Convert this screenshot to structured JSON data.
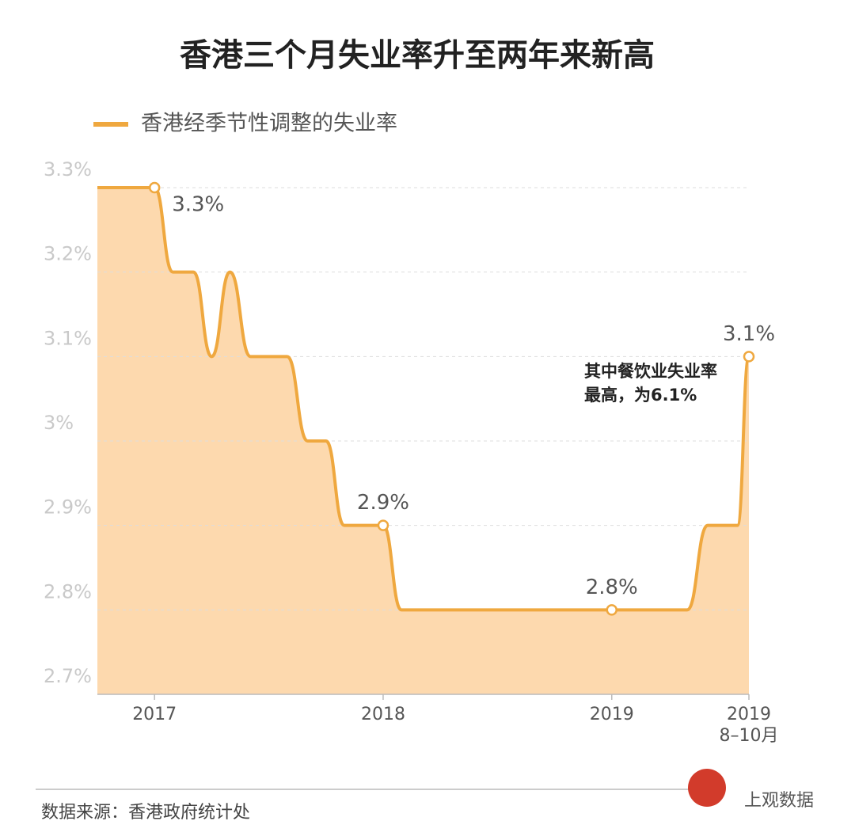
{
  "chart_data": {
    "type": "area",
    "title": "香港三个月失业率升至两年来新高",
    "series": [
      {
        "name": "香港经季节性调整的失业率",
        "color": "#efa83f",
        "fill": "#fdd9ae",
        "values": [
          3.3,
          3.3,
          3.3,
          3.3,
          3.2,
          3.2,
          3.1,
          3.2,
          3.1,
          3.1,
          3.1,
          3.0,
          3.0,
          2.9,
          2.9,
          2.9,
          2.8,
          2.8,
          2.8,
          2.8,
          2.8,
          2.8,
          2.8,
          2.8,
          2.8,
          2.8,
          2.8,
          2.8,
          2.8,
          2.8,
          2.8,
          2.8,
          2.9,
          2.9,
          2.9,
          3.1
        ],
        "value_labels": [
          null,
          null,
          null,
          "3.3%",
          null,
          null,
          null,
          null,
          null,
          null,
          null,
          null,
          null,
          null,
          null,
          "2.9%",
          null,
          null,
          null,
          null,
          null,
          null,
          null,
          null,
          null,
          null,
          null,
          "2.8%",
          null,
          null,
          null,
          null,
          null,
          null,
          null,
          "3.1%"
        ]
      }
    ],
    "x": [
      2016.75,
      2016.83,
      2016.92,
      2017,
      2017.08,
      2017.17,
      2017.25,
      2017.33,
      2017.42,
      2017.5,
      2017.58,
      2017.67,
      2017.75,
      2017.83,
      2017.92,
      2018,
      2018.08,
      2018.17,
      2018.25,
      2018.33,
      2018.42,
      2018.5,
      2018.58,
      2018.67,
      2018.75,
      2018.83,
      2018.92,
      2019,
      2019.08,
      2019.17,
      2019.25,
      2019.33,
      2019.42,
      2019.5,
      2019.55,
      2019.6
    ],
    "xlim": [
      2016.75,
      2019.6
    ],
    "xticks": [
      2017,
      2018,
      2019,
      {
        "value": 2019.6,
        "label": "2019\n8–10月"
      }
    ],
    "ylim": [
      2.7,
      3.3
    ],
    "yticks": [
      {
        "value": 3.3,
        "label": "3.3%"
      },
      {
        "value": 3.2,
        "label": "3.2%"
      },
      {
        "value": 3.1,
        "label": "3.1%"
      },
      {
        "value": 3.0,
        "label": "3%"
      },
      {
        "value": 2.9,
        "label": "2.9%"
      },
      {
        "value": 2.8,
        "label": "2.8%"
      },
      {
        "value": 2.7,
        "label": "2.7%"
      }
    ],
    "grid": true,
    "annotation": [
      "其中餐饮业失业率",
      "最高，为6.1%"
    ],
    "source": "数据来源：香港政府统计处",
    "watermark": "上观数据"
  }
}
